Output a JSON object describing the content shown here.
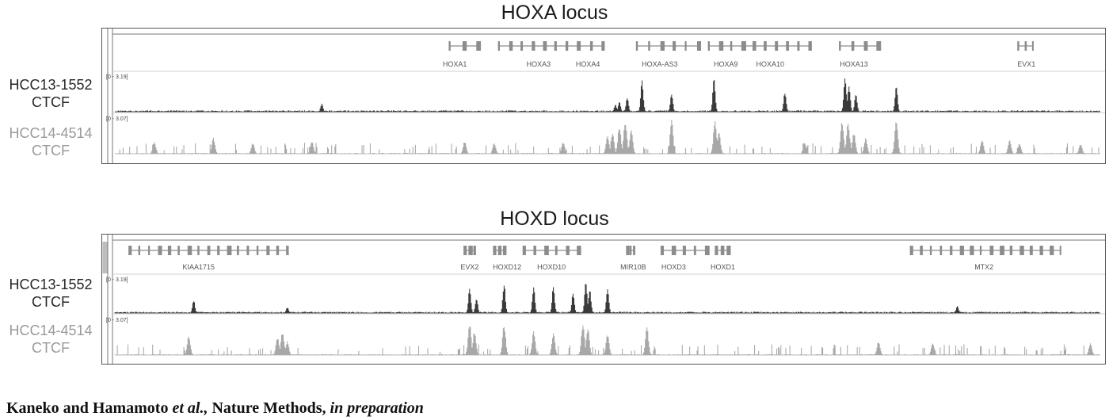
{
  "footer": {
    "authors": "Kaneko and Hamamoto",
    "etal": "et al.,",
    "journal": "Nature Methods,",
    "status": "in preparation"
  },
  "colors": {
    "dark_track": "#3a3a3a",
    "light_track": "#a8a8a8",
    "gene": "#8c8c8c",
    "frame": "#555555"
  },
  "loci": [
    {
      "title": "HOXA locus",
      "samples": [
        {
          "name": "HCC13-1552",
          "factor": "CTCF",
          "range": "[0 - 3.19]",
          "shade": "dark"
        },
        {
          "name": "HCC14-4514",
          "factor": "CTCF",
          "range": "[0 - 3.07]",
          "shade": "light"
        }
      ],
      "genes": [
        {
          "label": "HOXA1",
          "start": 0.34,
          "end": 0.368,
          "label_pos": 0.345,
          "icon": "exon-blocks"
        },
        {
          "label": "HOXA3",
          "start": 0.39,
          "end": 0.47,
          "label_pos": 0.43,
          "icon": "exon-blocks"
        },
        {
          "label": "HOXA4",
          "start": 0.472,
          "end": 0.495,
          "label_pos": 0.48,
          "icon": "exon-blocks"
        },
        {
          "label": "HOXA-AS3",
          "start": 0.53,
          "end": 0.592,
          "label_pos": 0.553,
          "icon": "exon-blocks"
        },
        {
          "label": "HOXA9",
          "start": 0.603,
          "end": 0.637,
          "label_pos": 0.62,
          "icon": "exon-blocks"
        },
        {
          "label": "HOXA10",
          "start": 0.637,
          "end": 0.705,
          "label_pos": 0.665,
          "icon": "exon-blocks"
        },
        {
          "label": "HOXA13",
          "start": 0.736,
          "end": 0.774,
          "label_pos": 0.75,
          "icon": "exon-blocks"
        },
        {
          "label": "EVX1",
          "start": 0.917,
          "end": 0.932,
          "label_pos": 0.925,
          "icon": "exon-blocks"
        }
      ],
      "peaks_dark": [
        {
          "pos": 0.21,
          "height": 0.2
        },
        {
          "pos": 0.508,
          "height": 0.18
        },
        {
          "pos": 0.512,
          "height": 0.25
        },
        {
          "pos": 0.52,
          "height": 0.35
        },
        {
          "pos": 0.535,
          "height": 0.8
        },
        {
          "pos": 0.565,
          "height": 0.45
        },
        {
          "pos": 0.608,
          "height": 0.85
        },
        {
          "pos": 0.68,
          "height": 0.5
        },
        {
          "pos": 0.741,
          "height": 0.9
        },
        {
          "pos": 0.745,
          "height": 0.7
        },
        {
          "pos": 0.752,
          "height": 0.45
        },
        {
          "pos": 0.793,
          "height": 0.65
        }
      ],
      "peaks_light": [
        {
          "pos": 0.04,
          "height": 0.3
        },
        {
          "pos": 0.1,
          "height": 0.4
        },
        {
          "pos": 0.14,
          "height": 0.28
        },
        {
          "pos": 0.2,
          "height": 0.32
        },
        {
          "pos": 0.355,
          "height": 0.32
        },
        {
          "pos": 0.385,
          "height": 0.28
        },
        {
          "pos": 0.455,
          "height": 0.3
        },
        {
          "pos": 0.5,
          "height": 0.45
        },
        {
          "pos": 0.505,
          "height": 0.55
        },
        {
          "pos": 0.512,
          "height": 0.7
        },
        {
          "pos": 0.518,
          "height": 0.85
        },
        {
          "pos": 0.524,
          "height": 0.6
        },
        {
          "pos": 0.565,
          "height": 0.85
        },
        {
          "pos": 0.609,
          "height": 0.85
        },
        {
          "pos": 0.613,
          "height": 0.55
        },
        {
          "pos": 0.7,
          "height": 0.3
        },
        {
          "pos": 0.738,
          "height": 0.85
        },
        {
          "pos": 0.744,
          "height": 0.78
        },
        {
          "pos": 0.75,
          "height": 0.55
        },
        {
          "pos": 0.762,
          "height": 0.4
        },
        {
          "pos": 0.793,
          "height": 0.85
        },
        {
          "pos": 0.88,
          "height": 0.35
        },
        {
          "pos": 0.908,
          "height": 0.35
        },
        {
          "pos": 0.918,
          "height": 0.25
        },
        {
          "pos": 0.98,
          "height": 0.25
        }
      ]
    },
    {
      "title": "HOXD locus",
      "samples": [
        {
          "name": "HCC13-1552",
          "factor": "CTCF",
          "range": "[0 - 3.19]",
          "shade": "dark"
        },
        {
          "name": "HCC14-4514",
          "factor": "CTCF",
          "range": "[0 - 3.07]",
          "shade": "light"
        }
      ],
      "genes": [
        {
          "label": "KIAA1715",
          "start": 0.015,
          "end": 0.175,
          "label_pos": 0.085,
          "icon": "exon-blocks"
        },
        {
          "label": "EVX2",
          "start": 0.355,
          "end": 0.365,
          "label_pos": 0.36,
          "icon": "exon-blocks"
        },
        {
          "label": "HOXD12",
          "start": 0.385,
          "end": 0.395,
          "label_pos": 0.398,
          "icon": "exon-blocks"
        },
        {
          "label": "HOXD10",
          "start": 0.415,
          "end": 0.47,
          "label_pos": 0.443,
          "icon": "exon-blocks"
        },
        {
          "label": "MIR10B",
          "start": 0.52,
          "end": 0.527,
          "label_pos": 0.526,
          "icon": "exon-blocks"
        },
        {
          "label": "HOXD3",
          "start": 0.555,
          "end": 0.6,
          "label_pos": 0.567,
          "icon": "exon-blocks"
        },
        {
          "label": "HOXD1",
          "start": 0.61,
          "end": 0.622,
          "label_pos": 0.617,
          "icon": "exon-blocks"
        },
        {
          "label": "MTX2",
          "start": 0.808,
          "end": 0.96,
          "label_pos": 0.882,
          "icon": "exon-blocks"
        }
      ],
      "peaks_dark": [
        {
          "pos": 0.08,
          "height": 0.35
        },
        {
          "pos": 0.175,
          "height": 0.15
        },
        {
          "pos": 0.36,
          "height": 0.65
        },
        {
          "pos": 0.367,
          "height": 0.4
        },
        {
          "pos": 0.395,
          "height": 0.8
        },
        {
          "pos": 0.425,
          "height": 0.7
        },
        {
          "pos": 0.445,
          "height": 0.7
        },
        {
          "pos": 0.465,
          "height": 0.55
        },
        {
          "pos": 0.478,
          "height": 0.85
        },
        {
          "pos": 0.482,
          "height": 0.6
        },
        {
          "pos": 0.5,
          "height": 0.7
        },
        {
          "pos": 0.855,
          "height": 0.18
        }
      ],
      "peaks_light": [
        {
          "pos": 0.075,
          "height": 0.5
        },
        {
          "pos": 0.165,
          "height": 0.45
        },
        {
          "pos": 0.17,
          "height": 0.6
        },
        {
          "pos": 0.175,
          "height": 0.35
        },
        {
          "pos": 0.36,
          "height": 0.8
        },
        {
          "pos": 0.365,
          "height": 0.6
        },
        {
          "pos": 0.395,
          "height": 0.78
        },
        {
          "pos": 0.425,
          "height": 0.6
        },
        {
          "pos": 0.445,
          "height": 0.55
        },
        {
          "pos": 0.475,
          "height": 0.82
        },
        {
          "pos": 0.48,
          "height": 0.7
        },
        {
          "pos": 0.5,
          "height": 0.55
        },
        {
          "pos": 0.54,
          "height": 0.7
        },
        {
          "pos": 0.775,
          "height": 0.35
        },
        {
          "pos": 0.83,
          "height": 0.3
        },
        {
          "pos": 0.99,
          "height": 0.3
        }
      ]
    }
  ]
}
